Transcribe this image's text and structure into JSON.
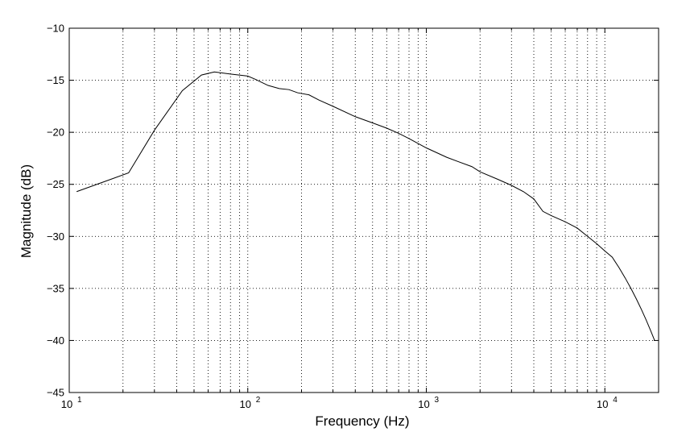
{
  "chart_data": {
    "type": "line",
    "title": "",
    "xlabel": "Frequency (Hz)",
    "ylabel": "Magnitude (dB)",
    "xscale": "log",
    "xlim": [
      10,
      20000
    ],
    "ylim": [
      -45,
      -10
    ],
    "grid": true,
    "legend": "none",
    "x_major_ticks": [
      10,
      100,
      1000,
      10000
    ],
    "x_tick_labels": [
      {
        "base": "10",
        "exp": "1"
      },
      {
        "base": "10",
        "exp": "2"
      },
      {
        "base": "10",
        "exp": "3"
      },
      {
        "base": "10",
        "exp": "4"
      }
    ],
    "y_ticks": [
      -10,
      -15,
      -20,
      -25,
      -30,
      -35,
      -40,
      -45
    ],
    "y_tick_labels": [
      "−10",
      "−15",
      "−20",
      "−25",
      "−30",
      "−35",
      "−40",
      "−45"
    ],
    "series": [
      {
        "color": "#000000",
        "x": [
          11,
          21.5,
          30,
          43,
          55,
          65,
          80,
          100,
          110,
          130,
          150,
          170,
          190,
          220,
          250,
          300,
          400,
          500,
          600,
          700,
          800,
          1000,
          1300,
          1500,
          1800,
          2000,
          2500,
          3000,
          3500,
          4000,
          4500,
          5000,
          6000,
          7000,
          8000,
          9000,
          10000,
          11000,
          12000,
          13000,
          14000,
          15000,
          16000,
          17000,
          18000,
          19000
        ],
        "y": [
          -25.7,
          -23.9,
          -19.8,
          -16.0,
          -14.5,
          -14.2,
          -14.4,
          -14.6,
          -14.9,
          -15.5,
          -15.8,
          -15.9,
          -16.2,
          -16.4,
          -16.9,
          -17.5,
          -18.5,
          -19.1,
          -19.6,
          -20.1,
          -20.6,
          -21.5,
          -22.4,
          -22.8,
          -23.3,
          -23.8,
          -24.5,
          -25.1,
          -25.7,
          -26.4,
          -27.6,
          -28.0,
          -28.6,
          -29.2,
          -30.0,
          -30.7,
          -31.4,
          -32.0,
          -33.0,
          -34.0,
          -35.0,
          -36.0,
          -37.0,
          -38.0,
          -39.0,
          -40.0
        ]
      }
    ]
  }
}
